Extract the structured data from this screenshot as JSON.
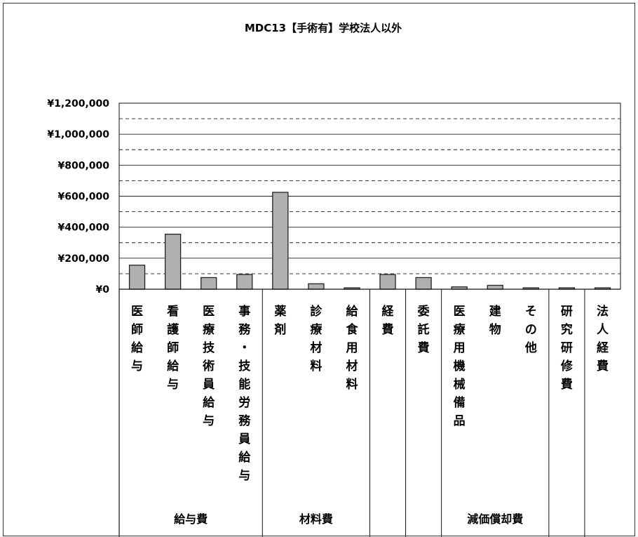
{
  "chart_data": {
    "type": "bar",
    "title": "MDC13【手術有】学校法人以外",
    "xlabel": "",
    "ylabel": "",
    "ylim": [
      0,
      1200000
    ],
    "yticks": [
      0,
      200000,
      400000,
      600000,
      800000,
      1000000,
      1200000
    ],
    "ytick_labels": [
      "¥0",
      "¥200,000",
      "¥400,000",
      "¥600,000",
      "¥800,000",
      "¥1,000,000",
      "¥1,200,000"
    ],
    "grid": true,
    "legend": "none",
    "categories": [
      "医師給与",
      "看護師給与",
      "医療技術員給与",
      "事務・技能労務員給与",
      "薬剤",
      "診療材料",
      "給食用材料",
      "経費",
      "委託費",
      "医療用機械備品",
      "建物",
      "その他",
      "研究研修費",
      "法人経費"
    ],
    "values": [
      155000,
      355000,
      75000,
      95000,
      625000,
      35000,
      5000,
      95000,
      75000,
      15000,
      25000,
      5000,
      0,
      5000
    ],
    "groups": [
      {
        "label": "給与費",
        "start": 0,
        "end": 3
      },
      {
        "label": "材料費",
        "start": 4,
        "end": 6
      },
      {
        "label": "",
        "start": 7,
        "end": 7
      },
      {
        "label": "",
        "start": 8,
        "end": 8
      },
      {
        "label": "減価償却費",
        "start": 9,
        "end": 11
      },
      {
        "label": "",
        "start": 12,
        "end": 12
      },
      {
        "label": "",
        "start": 13,
        "end": 13
      }
    ],
    "colors": {
      "bar_fill": "#b0b0b0",
      "bar_stroke": "#222222",
      "grid": "#222222",
      "axis": "#111111"
    }
  }
}
